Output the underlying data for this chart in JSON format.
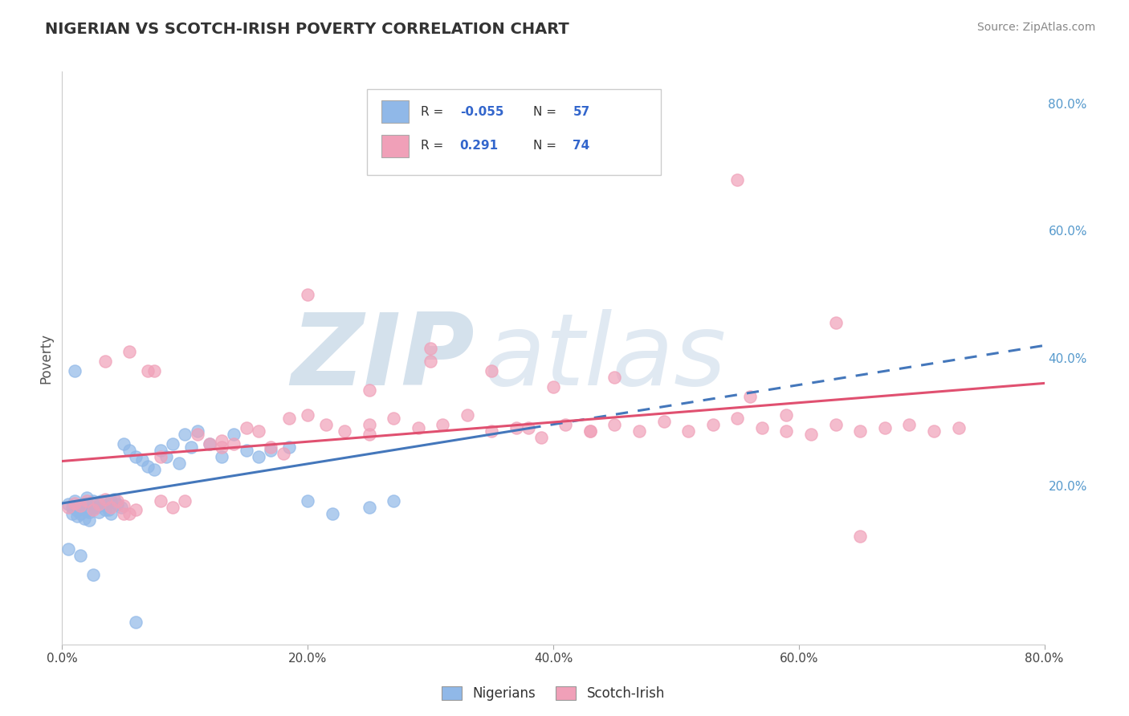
{
  "title": "NIGERIAN VS SCOTCH-IRISH POVERTY CORRELATION CHART",
  "source": "Source: ZipAtlas.com",
  "ylabel": "Poverty",
  "xlim": [
    0.0,
    0.8
  ],
  "ylim": [
    -0.05,
    0.85
  ],
  "right_yticks": [
    0.2,
    0.4,
    0.6,
    0.8
  ],
  "right_ytick_labels": [
    "20.0%",
    "40.0%",
    "60.0%",
    "80.0%"
  ],
  "xticks": [
    0.0,
    0.2,
    0.4,
    0.6,
    0.8
  ],
  "xtick_labels": [
    "0.0%",
    "20.0%",
    "40.0%",
    "60.0%",
    "80.0%"
  ],
  "nig_color": "#90b8e8",
  "si_color": "#f0a0b8",
  "nig_line_color": "#4477bb",
  "si_line_color": "#e05070",
  "background_color": "#ffffff",
  "grid_color": "#c8d8e8",
  "watermark": "ZIPatlas",
  "watermark_color": "#ccd8e8",
  "legend_r1": "R = -0.055   N = 57",
  "legend_r2": "R =   0.291   N = 74",
  "legend_labels": [
    "Nigerians",
    "Scotch-Irish"
  ],
  "title_fontsize": 14,
  "source_fontsize": 10,
  "nig_x": [
    0.005,
    0.008,
    0.01,
    0.012,
    0.015,
    0.018,
    0.02,
    0.022,
    0.025,
    0.028,
    0.03,
    0.032,
    0.035,
    0.038,
    0.04,
    0.042,
    0.045,
    0.048,
    0.05,
    0.055,
    0.06,
    0.065,
    0.07,
    0.075,
    0.08,
    0.085,
    0.09,
    0.095,
    0.1,
    0.105,
    0.11,
    0.12,
    0.13,
    0.14,
    0.15,
    0.16,
    0.17,
    0.185,
    0.2,
    0.22,
    0.25,
    0.27,
    0.01,
    0.015,
    0.02,
    0.025,
    0.03,
    0.035,
    0.04,
    0.008,
    0.012,
    0.018,
    0.022,
    0.005,
    0.015,
    0.025,
    0.06
  ],
  "nig_y": [
    0.17,
    0.165,
    0.175,
    0.16,
    0.168,
    0.172,
    0.18,
    0.158,
    0.175,
    0.165,
    0.17,
    0.175,
    0.168,
    0.162,
    0.175,
    0.178,
    0.17,
    0.165,
    0.265,
    0.255,
    0.245,
    0.24,
    0.23,
    0.225,
    0.255,
    0.245,
    0.265,
    0.235,
    0.28,
    0.26,
    0.285,
    0.265,
    0.245,
    0.28,
    0.255,
    0.245,
    0.255,
    0.26,
    0.175,
    0.155,
    0.165,
    0.175,
    0.38,
    0.155,
    0.16,
    0.165,
    0.158,
    0.162,
    0.155,
    0.155,
    0.152,
    0.148,
    0.145,
    0.1,
    0.09,
    0.06,
    -0.015
  ],
  "si_x": [
    0.005,
    0.01,
    0.015,
    0.02,
    0.025,
    0.03,
    0.035,
    0.04,
    0.045,
    0.05,
    0.055,
    0.06,
    0.07,
    0.08,
    0.09,
    0.1,
    0.11,
    0.12,
    0.13,
    0.14,
    0.15,
    0.16,
    0.17,
    0.185,
    0.2,
    0.215,
    0.23,
    0.25,
    0.27,
    0.29,
    0.31,
    0.33,
    0.35,
    0.37,
    0.39,
    0.41,
    0.43,
    0.45,
    0.47,
    0.49,
    0.51,
    0.53,
    0.55,
    0.57,
    0.59,
    0.61,
    0.63,
    0.65,
    0.67,
    0.69,
    0.71,
    0.73,
    0.035,
    0.055,
    0.075,
    0.2,
    0.25,
    0.3,
    0.35,
    0.4,
    0.45,
    0.55,
    0.3,
    0.63,
    0.56,
    0.65,
    0.59,
    0.43,
    0.38,
    0.25,
    0.18,
    0.13,
    0.08,
    0.05
  ],
  "si_y": [
    0.165,
    0.172,
    0.168,
    0.175,
    0.162,
    0.17,
    0.178,
    0.165,
    0.175,
    0.168,
    0.155,
    0.162,
    0.38,
    0.175,
    0.165,
    0.175,
    0.28,
    0.265,
    0.27,
    0.265,
    0.29,
    0.285,
    0.26,
    0.305,
    0.31,
    0.295,
    0.285,
    0.28,
    0.305,
    0.29,
    0.295,
    0.31,
    0.285,
    0.29,
    0.275,
    0.295,
    0.285,
    0.295,
    0.285,
    0.3,
    0.285,
    0.295,
    0.305,
    0.29,
    0.285,
    0.28,
    0.295,
    0.285,
    0.29,
    0.295,
    0.285,
    0.29,
    0.395,
    0.41,
    0.38,
    0.5,
    0.35,
    0.395,
    0.38,
    0.355,
    0.37,
    0.68,
    0.415,
    0.455,
    0.34,
    0.12,
    0.31,
    0.285,
    0.29,
    0.295,
    0.25,
    0.26,
    0.245,
    0.155
  ]
}
